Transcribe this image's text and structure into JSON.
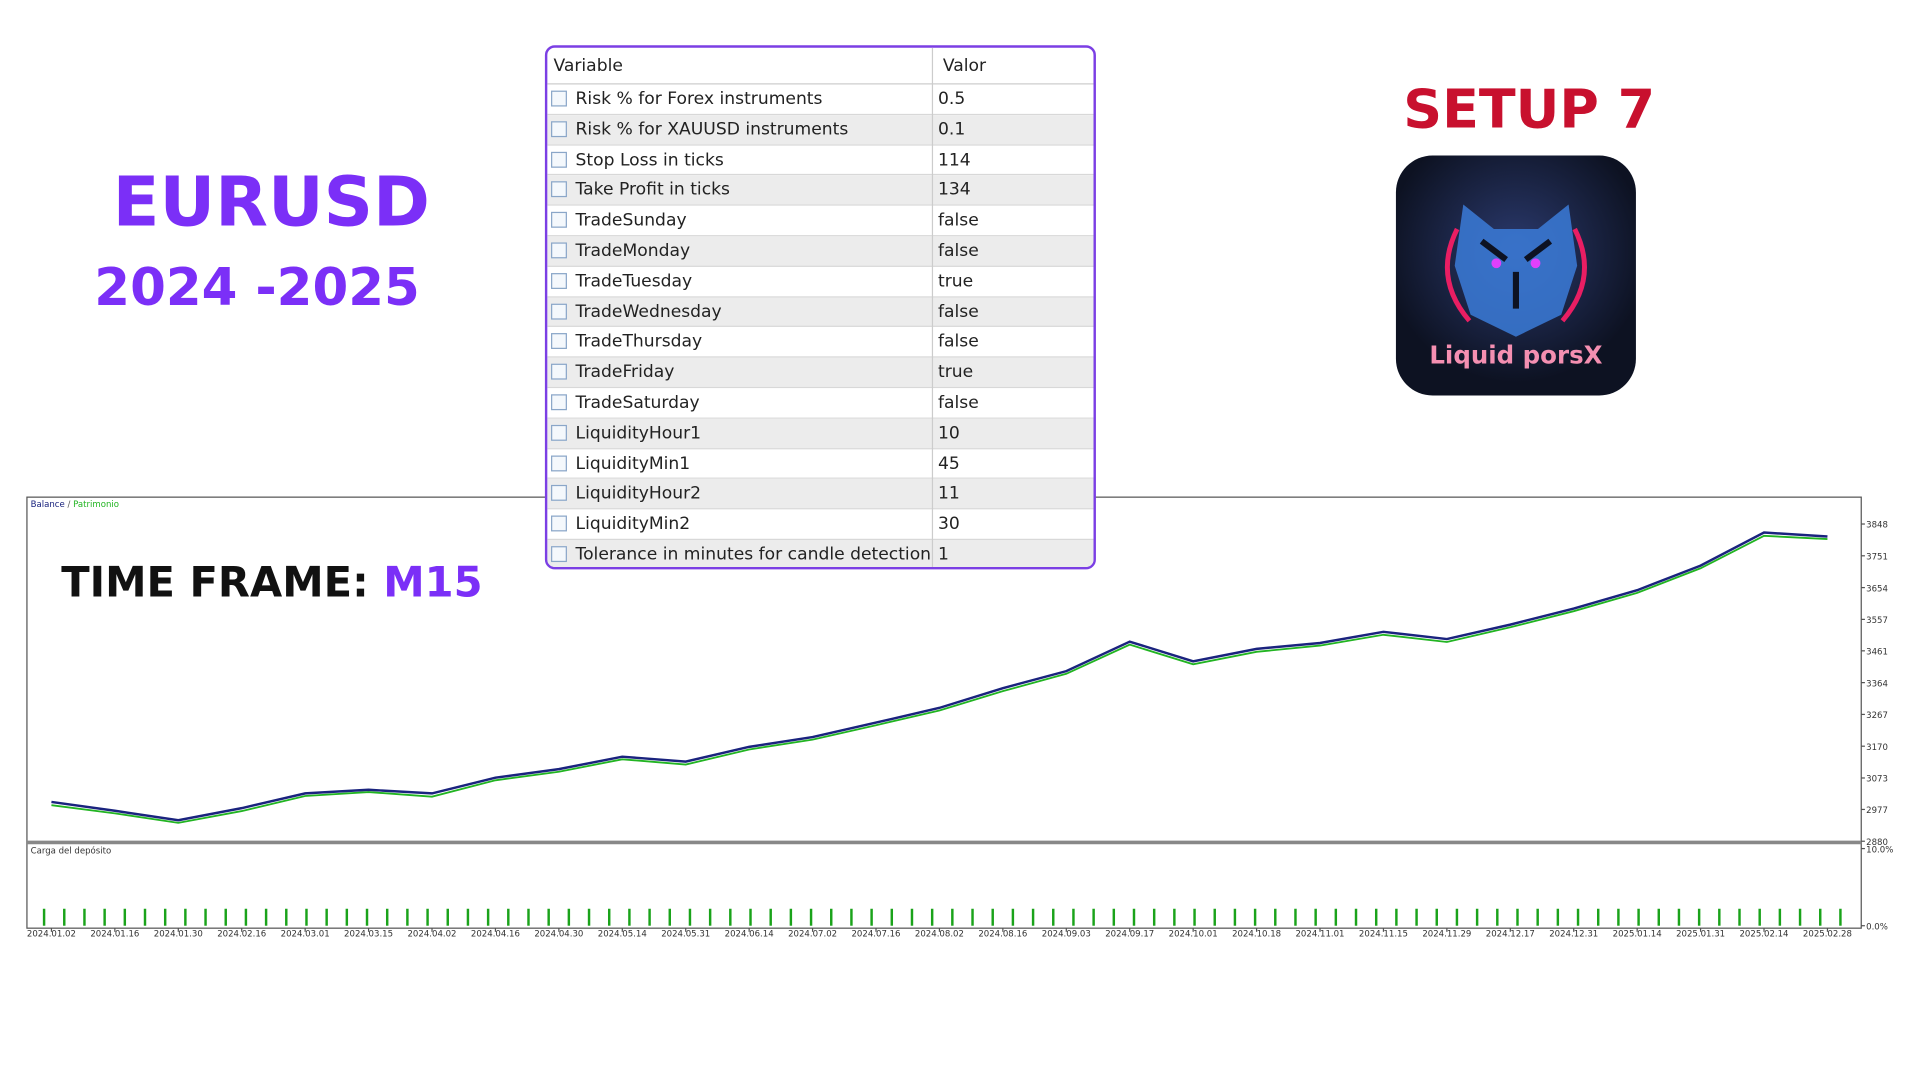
{
  "headings": {
    "symbol": "EURUSD",
    "period": "2024 -2025",
    "setup": "SETUP 7",
    "timeframe_label": "TIME FRAME:",
    "timeframe": "M15",
    "logo": "Liquid porsX"
  },
  "table": {
    "columns": [
      "Variable",
      "Valor"
    ],
    "rows": [
      [
        "Risk % for Forex instruments",
        "0.5"
      ],
      [
        "Risk % for XAUUSD instruments",
        "0.1"
      ],
      [
        "Stop Loss in ticks",
        "114"
      ],
      [
        "Take Profit in ticks",
        "134"
      ],
      [
        "TradeSunday",
        "false"
      ],
      [
        "TradeMonday",
        "false"
      ],
      [
        "TradeTuesday",
        "true"
      ],
      [
        "TradeWednesday",
        "false"
      ],
      [
        "TradeThursday",
        "false"
      ],
      [
        "TradeFriday",
        "true"
      ],
      [
        "TradeSaturday",
        "false"
      ],
      [
        "LiquidityHour1",
        "10"
      ],
      [
        "LiquidityMin1",
        "45"
      ],
      [
        "LiquidityHour2",
        "11"
      ],
      [
        "LiquidityMin2",
        "30"
      ],
      [
        "Tolerance in minutes for candle detection",
        "1"
      ]
    ]
  },
  "chart_data": [
    {
      "type": "line",
      "legend_separator": "/",
      "categories": [
        "2024.01.02",
        "2024.01.16",
        "2024.01.30",
        "2024.02.16",
        "2024.03.01",
        "2024.03.15",
        "2024.04.02",
        "2024.04.16",
        "2024.04.30",
        "2024.05.14",
        "2024.05.31",
        "2024.06.14",
        "2024.07.02",
        "2024.07.16",
        "2024.08.02",
        "2024.08.16",
        "2024.09.03",
        "2024.09.17",
        "2024.10.01",
        "2024.10.18",
        "2024.11.01",
        "2024.11.15",
        "2024.11.29",
        "2024.12.17",
        "2024.12.31",
        "2025.01.14",
        "2025.01.31",
        "2025.02.14",
        "2025.02.28"
      ],
      "series": [
        {
          "name": "Balance",
          "color": "#1a237e",
          "values": [
            3000,
            2973,
            2944,
            2981,
            3026,
            3037,
            3026,
            3074,
            3100,
            3138,
            3123,
            3168,
            3198,
            3242,
            3287,
            3347,
            3399,
            3489,
            3429,
            3467,
            3485,
            3519,
            3497,
            3541,
            3590,
            3646,
            3721,
            3822,
            3810
          ]
        },
        {
          "name": "Patrimonio",
          "color": "#22b422",
          "values": [
            2990,
            2965,
            2936,
            2972,
            3018,
            3030,
            3016,
            3066,
            3092,
            3130,
            3114,
            3160,
            3190,
            3234,
            3279,
            3338,
            3391,
            3480,
            3420,
            3458,
            3477,
            3510,
            3488,
            3533,
            3582,
            3638,
            3713,
            3812,
            3802
          ]
        }
      ],
      "ylim": [
        2880,
        3930
      ],
      "yticks": [
        2880,
        2977,
        3073,
        3170,
        3267,
        3364,
        3461,
        3557,
        3654,
        3751,
        3848
      ]
    },
    {
      "type": "bar",
      "title": "Carga del depósito",
      "color": "#1aa31a",
      "ylim": [
        0,
        10
      ],
      "yticks": [
        {
          "value": 10,
          "label": "10.0%"
        },
        {
          "value": 0,
          "label": "0.0%"
        }
      ],
      "values": [
        2.2,
        2.2,
        2.2,
        2.2,
        2.2,
        2.2,
        2.2,
        2.2,
        2.2,
        2.2,
        2.2,
        2.2,
        2.2,
        2.2,
        2.2,
        2.2,
        2.2,
        2.2,
        2.2,
        2.2,
        2.2,
        2.2,
        2.2,
        2.2,
        2.2,
        2.2,
        2.2,
        2.2,
        2.2,
        2.2,
        2.2,
        2.2,
        2.2,
        2.2,
        2.2,
        2.2,
        2.2,
        2.2,
        2.2,
        2.2,
        2.2,
        2.2,
        2.2,
        2.2,
        2.2,
        2.2,
        2.2,
        2.2,
        2.2,
        2.2,
        2.2,
        2.2,
        2.2,
        2.2,
        2.2,
        2.2,
        2.2,
        2.2,
        2.2,
        2.2,
        2.2,
        2.2,
        2.2,
        2.2,
        2.2,
        2.2,
        2.2,
        2.2,
        2.2,
        2.2,
        2.2,
        2.2,
        2.2,
        2.2,
        2.2,
        2.2,
        2.2,
        2.2,
        2.2,
        2.2,
        2.2,
        2.2,
        2.2,
        2.2,
        2.2,
        2.2,
        2.2,
        2.2,
        2.2,
        2.2
      ]
    }
  ]
}
